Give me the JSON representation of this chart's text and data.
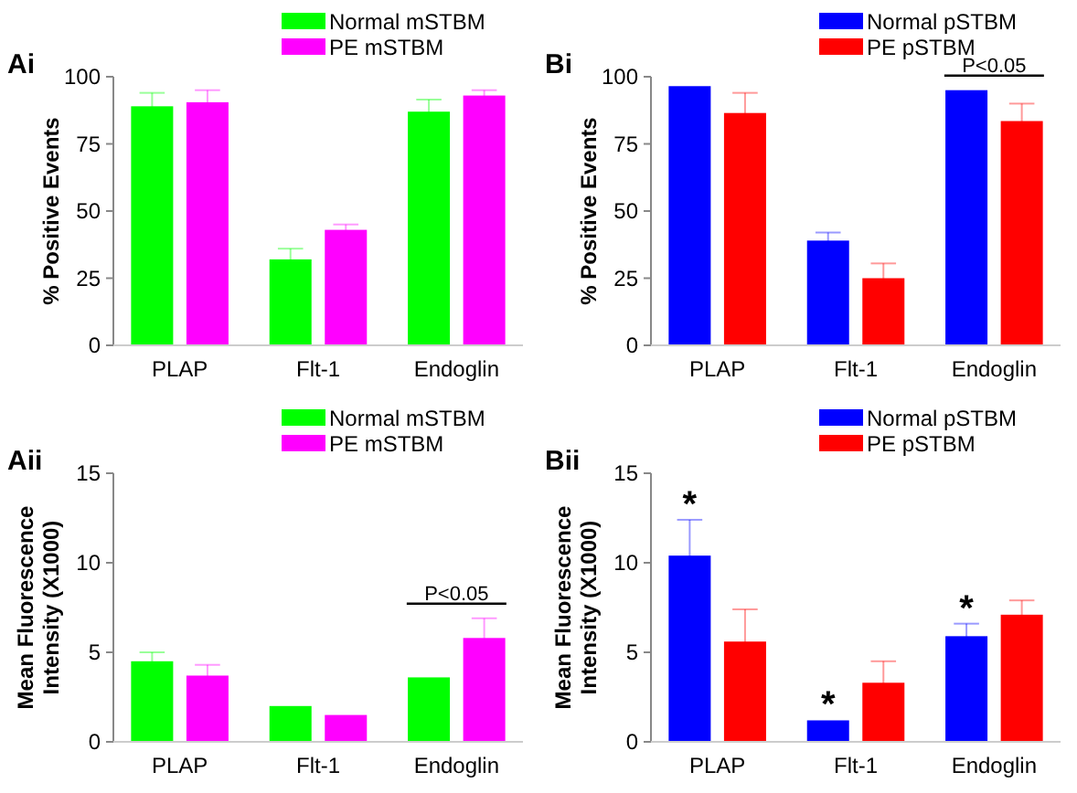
{
  "chart_data": [
    {
      "type": "bar",
      "title": "Ai",
      "ylabel": "% Positive Events",
      "categories": [
        "PLAP",
        "Flt-1",
        "Endoglin"
      ],
      "ylim": [
        0,
        100
      ],
      "yticks": [
        0,
        25,
        50,
        75,
        100
      ],
      "legend": "top right",
      "series": [
        {
          "name": "Normal mSTBM",
          "color": "#00ff00",
          "values": [
            89,
            32,
            87
          ],
          "errors": [
            5,
            4,
            4.5
          ]
        },
        {
          "name": "PE mSTBM",
          "color": "#ff00ff",
          "values": [
            90.5,
            43,
            93
          ],
          "errors": [
            4.5,
            2,
            2
          ]
        }
      ]
    },
    {
      "type": "bar",
      "title": "Bi",
      "ylabel": "% Positive Events",
      "categories": [
        "PLAP",
        "Flt-1",
        "Endoglin"
      ],
      "ylim": [
        0,
        100
      ],
      "yticks": [
        0,
        25,
        50,
        75,
        100
      ],
      "legend": "top right",
      "annotations": [
        {
          "text": "P<0.05",
          "x": "Endoglin",
          "y": 95
        }
      ],
      "series": [
        {
          "name": "Normal pSTBM",
          "color": "#0000ff",
          "values": [
            96.5,
            39,
            95
          ],
          "errors": [
            null,
            3,
            null
          ]
        },
        {
          "name": "PE pSTBM",
          "color": "#ff0000",
          "values": [
            86.5,
            25,
            83.5
          ],
          "errors": [
            7.5,
            5.5,
            6.5
          ]
        }
      ]
    },
    {
      "type": "bar",
      "title": "Aii",
      "ylabel": "Mean Fluorescence Intensity (X1000)",
      "categories": [
        "PLAP",
        "Flt-1",
        "Endoglin"
      ],
      "ylim": [
        0,
        15
      ],
      "yticks": [
        0,
        5,
        10,
        15
      ],
      "legend": "top right",
      "annotations": [
        {
          "text": "P<0.05",
          "x": "Endoglin",
          "y": 5.8
        }
      ],
      "series": [
        {
          "name": "Normal mSTBM",
          "color": "#00ff00",
          "values": [
            4.5,
            2,
            3.6
          ],
          "errors": [
            0.5,
            null,
            null
          ]
        },
        {
          "name": "PE mSTBM",
          "color": "#ff00ff",
          "values": [
            3.7,
            1.5,
            5.8
          ],
          "errors": [
            0.6,
            null,
            1.1
          ]
        }
      ]
    },
    {
      "type": "bar",
      "title": "Bii",
      "ylabel": "Mean Fluorescence Intensity (X1000)",
      "categories": [
        "PLAP",
        "Flt-1",
        "Endoglin"
      ],
      "ylim": [
        0,
        15
      ],
      "yticks": [
        0,
        5,
        10,
        15
      ],
      "legend": "top right",
      "annotations": [
        {
          "text": "*",
          "x": "PLAP",
          "y": 10.4
        },
        {
          "text": "*",
          "x": "Flt-1",
          "y": 1.2
        },
        {
          "text": "*",
          "x": "Endoglin",
          "y": 5.9
        }
      ],
      "series": [
        {
          "name": "Normal pSTBM",
          "color": "#0000ff",
          "values": [
            10.4,
            1.2,
            5.9
          ],
          "errors": [
            2,
            null,
            0.7
          ]
        },
        {
          "name": "PE pSTBM",
          "color": "#ff0000",
          "values": [
            5.6,
            3.3,
            7.1
          ],
          "errors": [
            1.8,
            1.2,
            0.8
          ]
        }
      ]
    }
  ]
}
